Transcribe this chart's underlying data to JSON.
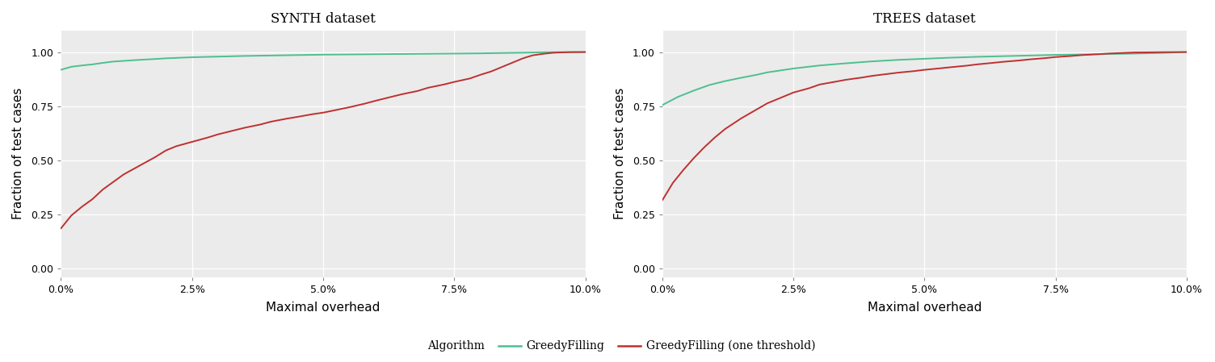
{
  "synth_title": "SYNTH dataset",
  "trees_title": "TREES dataset",
  "xlabel": "Maximal overhead",
  "ylabel": "Fraction of test cases",
  "xlim": [
    0.0,
    0.1
  ],
  "ylim": [
    -0.04,
    1.1
  ],
  "xticks": [
    0.0,
    0.025,
    0.05,
    0.075,
    0.1
  ],
  "xtick_labels": [
    "0.0%",
    "2.5%",
    "5.0%",
    "7.5%",
    "10.0%"
  ],
  "yticks": [
    0.0,
    0.25,
    0.5,
    0.75,
    1.0
  ],
  "ytick_labels": [
    "0.00",
    "0.25",
    "0.50",
    "0.75",
    "1.00"
  ],
  "color_green": "#4dbf90",
  "color_red": "#bf3030",
  "bg_color": "#ebebeb",
  "legend_title": "Algorithm",
  "legend_label_green": "GreedyFilling",
  "legend_label_red": "GreedyFilling (one threshold)",
  "synth_green_x": [
    0.0,
    0.001,
    0.002,
    0.004,
    0.006,
    0.008,
    0.01,
    0.013,
    0.015,
    0.018,
    0.02,
    0.025,
    0.03,
    0.035,
    0.04,
    0.045,
    0.05,
    0.055,
    0.06,
    0.065,
    0.07,
    0.075,
    0.08,
    0.085,
    0.088,
    0.09,
    0.092,
    0.095,
    0.1
  ],
  "synth_green_y": [
    0.918,
    0.925,
    0.932,
    0.938,
    0.943,
    0.95,
    0.956,
    0.961,
    0.964,
    0.968,
    0.971,
    0.976,
    0.979,
    0.982,
    0.984,
    0.986,
    0.988,
    0.989,
    0.99,
    0.991,
    0.992,
    0.993,
    0.994,
    0.996,
    0.997,
    0.998,
    0.999,
    0.9995,
    1.0
  ],
  "synth_red_x": [
    0.0,
    0.001,
    0.002,
    0.004,
    0.006,
    0.008,
    0.01,
    0.012,
    0.015,
    0.018,
    0.02,
    0.022,
    0.025,
    0.028,
    0.03,
    0.033,
    0.035,
    0.038,
    0.04,
    0.043,
    0.045,
    0.048,
    0.05,
    0.053,
    0.055,
    0.058,
    0.06,
    0.063,
    0.065,
    0.068,
    0.07,
    0.073,
    0.075,
    0.078,
    0.08,
    0.082,
    0.083,
    0.085,
    0.087,
    0.088,
    0.089,
    0.09,
    0.092,
    0.094,
    0.095,
    0.097,
    0.1
  ],
  "synth_red_y": [
    0.185,
    0.215,
    0.245,
    0.285,
    0.32,
    0.365,
    0.4,
    0.435,
    0.475,
    0.515,
    0.545,
    0.565,
    0.585,
    0.605,
    0.62,
    0.638,
    0.65,
    0.665,
    0.678,
    0.692,
    0.7,
    0.713,
    0.72,
    0.735,
    0.745,
    0.762,
    0.775,
    0.793,
    0.805,
    0.82,
    0.835,
    0.85,
    0.862,
    0.878,
    0.895,
    0.91,
    0.92,
    0.94,
    0.96,
    0.97,
    0.978,
    0.985,
    0.992,
    0.997,
    0.998,
    0.9995,
    1.0
  ],
  "trees_green_x": [
    0.0,
    0.003,
    0.006,
    0.009,
    0.012,
    0.015,
    0.018,
    0.02,
    0.025,
    0.03,
    0.035,
    0.04,
    0.045,
    0.05,
    0.055,
    0.06,
    0.065,
    0.07,
    0.075,
    0.08,
    0.085,
    0.09,
    0.095,
    0.1
  ],
  "trees_green_y": [
    0.755,
    0.793,
    0.822,
    0.848,
    0.866,
    0.881,
    0.895,
    0.906,
    0.924,
    0.938,
    0.948,
    0.957,
    0.964,
    0.969,
    0.974,
    0.978,
    0.981,
    0.984,
    0.987,
    0.989,
    0.991,
    0.993,
    0.996,
    1.0
  ],
  "trees_red_x": [
    0.0,
    0.002,
    0.004,
    0.006,
    0.008,
    0.01,
    0.012,
    0.015,
    0.018,
    0.02,
    0.023,
    0.025,
    0.028,
    0.03,
    0.033,
    0.035,
    0.038,
    0.04,
    0.043,
    0.045,
    0.048,
    0.05,
    0.053,
    0.055,
    0.058,
    0.06,
    0.063,
    0.065,
    0.068,
    0.07,
    0.073,
    0.075,
    0.078,
    0.08,
    0.083,
    0.085,
    0.088,
    0.09,
    0.093,
    0.095,
    0.098,
    0.1
  ],
  "trees_red_y": [
    0.315,
    0.395,
    0.455,
    0.51,
    0.56,
    0.605,
    0.645,
    0.693,
    0.735,
    0.763,
    0.793,
    0.813,
    0.833,
    0.85,
    0.863,
    0.872,
    0.882,
    0.89,
    0.899,
    0.905,
    0.912,
    0.918,
    0.925,
    0.93,
    0.937,
    0.943,
    0.95,
    0.955,
    0.961,
    0.966,
    0.972,
    0.977,
    0.982,
    0.986,
    0.99,
    0.993,
    0.996,
    0.998,
    0.9988,
    0.9993,
    0.9998,
    1.0
  ]
}
